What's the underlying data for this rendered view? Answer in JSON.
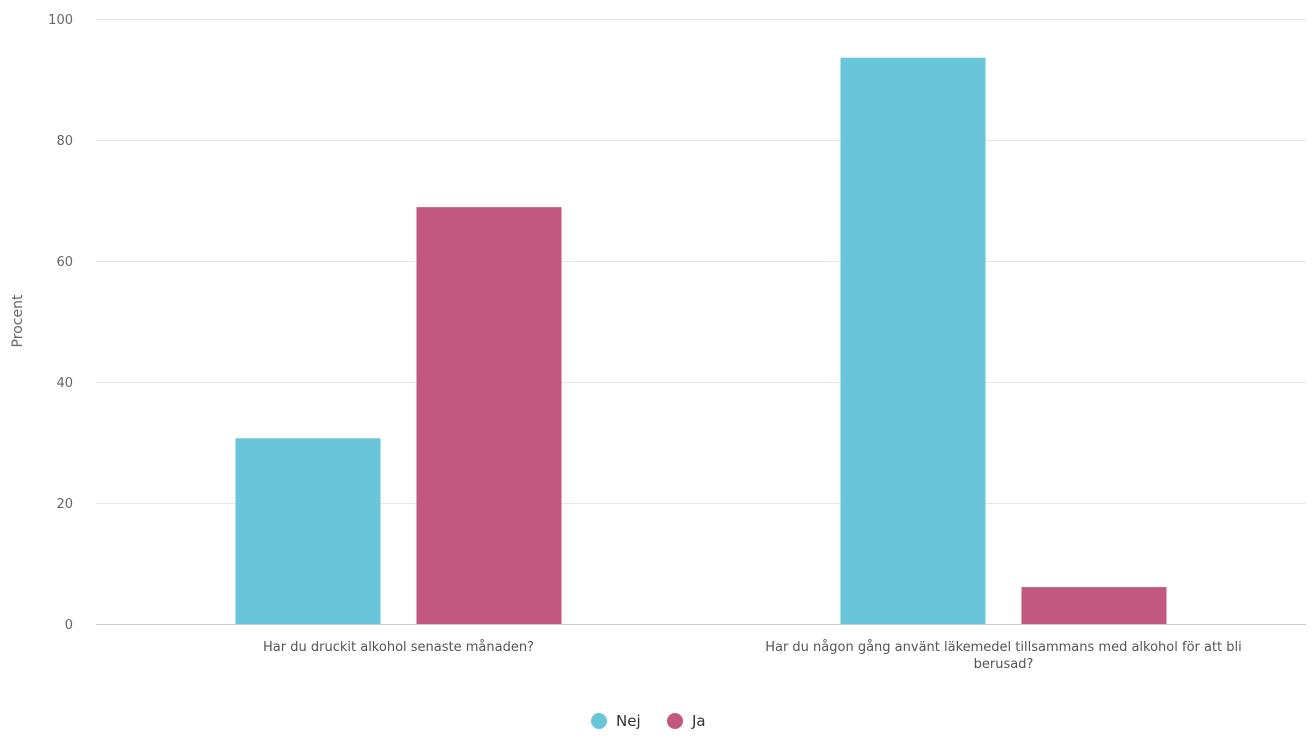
{
  "chart_data": {
    "type": "bar",
    "categories": [
      [
        "Har du druckit alkohol senaste månaden?"
      ],
      [
        "Har du någon gång använt läkemedel tillsammans med alkohol för att bli",
        "berusad?"
      ]
    ],
    "series": [
      {
        "name": "Nej",
        "color": "#69c5da",
        "values": [
          30.7,
          93.6
        ]
      },
      {
        "name": "Ja",
        "color": "#c2577f",
        "values": [
          68.9,
          6.1
        ]
      }
    ],
    "ylabel": "Procent",
    "xlabel": "",
    "ylim": [
      0,
      100
    ],
    "yticks": [
      0,
      20,
      40,
      60,
      80,
      100
    ],
    "grid": true,
    "legend_position": "bottom-center"
  }
}
